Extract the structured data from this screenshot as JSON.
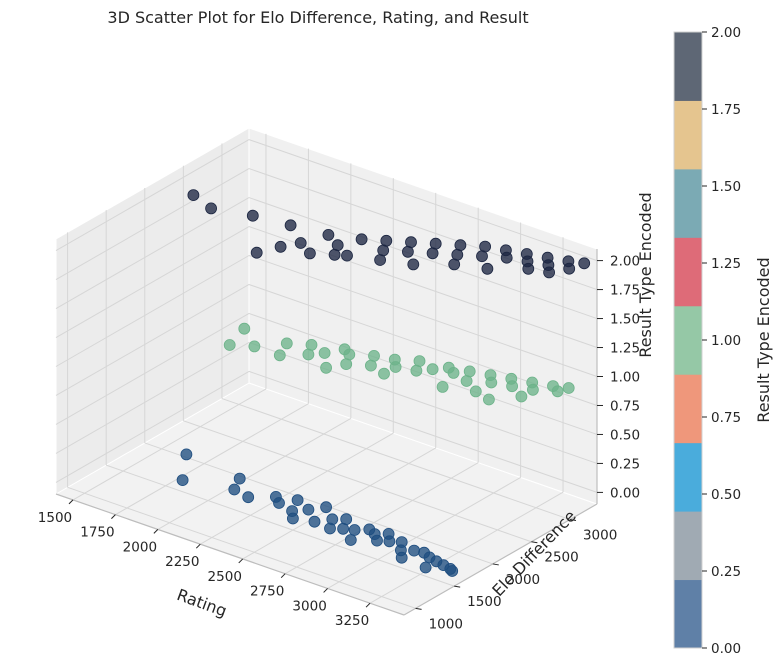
{
  "chart_data": {
    "type": "scatter",
    "projection": "3d",
    "title": "3D Scatter Plot for Elo Difference, Rating, and Result",
    "xlabel": "Rating",
    "ylabel": "Elo Difference",
    "zlabel": "Result Type Encoded",
    "xlim": [
      1400,
      3450
    ],
    "ylim": [
      850,
      3350
    ],
    "zlim": [
      -0.1,
      2.1
    ],
    "x_ticks": [
      "1500",
      "1750",
      "2000",
      "2250",
      "2500",
      "2750",
      "3000",
      "3250"
    ],
    "y_ticks": [
      "1000",
      "1500",
      "2000",
      "2500",
      "3000"
    ],
    "z_ticks": [
      "0.00",
      "0.25",
      "0.50",
      "0.75",
      "1.00",
      "1.25",
      "1.50",
      "1.75",
      "2.00"
    ],
    "grid": true,
    "colorbar": {
      "label": "Result Type Encoded",
      "ticks": [
        "0.00",
        "0.25",
        "0.50",
        "0.75",
        "1.00",
        "1.25",
        "1.50",
        "1.75",
        "2.00"
      ],
      "range": [
        0,
        2
      ],
      "colors": [
        "#5f80a7",
        "#a0aab3",
        "#4aacdc",
        "#ef977b",
        "#95c8a6",
        "#de6b78",
        "#7baab4",
        "#e5c58f",
        "#5e6775"
      ]
    },
    "series": [
      {
        "z": 0,
        "color": "#1f4e80",
        "points": [
          [
            1700,
            1880
          ],
          [
            1850,
            1500
          ],
          [
            2050,
            1800
          ],
          [
            2100,
            1620
          ],
          [
            2200,
            1580
          ],
          [
            2300,
            1720
          ],
          [
            2350,
            1650
          ],
          [
            2400,
            1780
          ],
          [
            2450,
            1600
          ],
          [
            2500,
            1700
          ],
          [
            2550,
            1820
          ],
          [
            2500,
            1500
          ],
          [
            2600,
            1560
          ],
          [
            2650,
            1680
          ],
          [
            2700,
            1750
          ],
          [
            2750,
            1600
          ],
          [
            2800,
            1640
          ],
          [
            2850,
            1720
          ],
          [
            2900,
            1680
          ],
          [
            2950,
            1600
          ],
          [
            3000,
            1650
          ],
          [
            3050,
            1700
          ],
          [
            3100,
            1580
          ],
          [
            3150,
            1640
          ],
          [
            3200,
            1660
          ],
          [
            3250,
            1620
          ],
          [
            3300,
            1600
          ],
          [
            3350,
            1580
          ],
          [
            3400,
            1560
          ],
          [
            3420,
            1540
          ],
          [
            2850,
            1480
          ],
          [
            3150,
            1480
          ],
          [
            3300,
            1460
          ],
          [
            2700,
            1540
          ],
          [
            2950,
            1750
          ]
        ]
      },
      {
        "z": 1,
        "color": "#6db38a",
        "points": [
          [
            1850,
            2300
          ],
          [
            1900,
            2000
          ],
          [
            2000,
            2100
          ],
          [
            2100,
            2300
          ],
          [
            2150,
            2100
          ],
          [
            2200,
            2400
          ],
          [
            2250,
            2250
          ],
          [
            2300,
            2350
          ],
          [
            2350,
            2500
          ],
          [
            2400,
            2450
          ],
          [
            2450,
            2300
          ],
          [
            2500,
            2550
          ],
          [
            2550,
            2400
          ],
          [
            2600,
            2600
          ],
          [
            2650,
            2500
          ],
          [
            2700,
            2700
          ],
          [
            2750,
            2550
          ],
          [
            2800,
            2650
          ],
          [
            2850,
            2750
          ],
          [
            2900,
            2700
          ],
          [
            2950,
            2800
          ],
          [
            3000,
            2650
          ],
          [
            3050,
            2850
          ],
          [
            3100,
            2750
          ],
          [
            3150,
            2900
          ],
          [
            3200,
            2800
          ],
          [
            3250,
            2950
          ],
          [
            3300,
            2850
          ],
          [
            3350,
            3000
          ],
          [
            3400,
            2950
          ],
          [
            3420,
            3050
          ],
          [
            2950,
            2450
          ],
          [
            3100,
            2550
          ],
          [
            3200,
            2500
          ],
          [
            2650,
            2350
          ],
          [
            2400,
            2150
          ],
          [
            3300,
            2700
          ]
        ]
      },
      {
        "z": 2,
        "color": "#1d2742",
        "points": [
          [
            1550,
            2300
          ],
          [
            1700,
            2200
          ],
          [
            1900,
            2300
          ],
          [
            2100,
            2350
          ],
          [
            2150,
            1800
          ],
          [
            2200,
            2000
          ],
          [
            2250,
            2150
          ],
          [
            2300,
            2400
          ],
          [
            2350,
            2050
          ],
          [
            2400,
            2300
          ],
          [
            2450,
            2500
          ],
          [
            2500,
            2200
          ],
          [
            2550,
            2600
          ],
          [
            2600,
            2450
          ],
          [
            2650,
            2700
          ],
          [
            2700,
            2550
          ],
          [
            2750,
            2800
          ],
          [
            2800,
            2650
          ],
          [
            2850,
            2900
          ],
          [
            2900,
            2750
          ],
          [
            2950,
            3000
          ],
          [
            3000,
            2850
          ],
          [
            3050,
            3050
          ],
          [
            3100,
            2950
          ],
          [
            3150,
            3100
          ],
          [
            3200,
            3000
          ],
          [
            3250,
            3150
          ],
          [
            3300,
            3050
          ],
          [
            3350,
            3200
          ],
          [
            3400,
            3100
          ],
          [
            3420,
            3250
          ],
          [
            2950,
            2600
          ],
          [
            3100,
            2700
          ],
          [
            3250,
            2900
          ],
          [
            2800,
            2400
          ],
          [
            2650,
            2300
          ],
          [
            2450,
            2150
          ],
          [
            3350,
            2950
          ]
        ]
      }
    ]
  }
}
